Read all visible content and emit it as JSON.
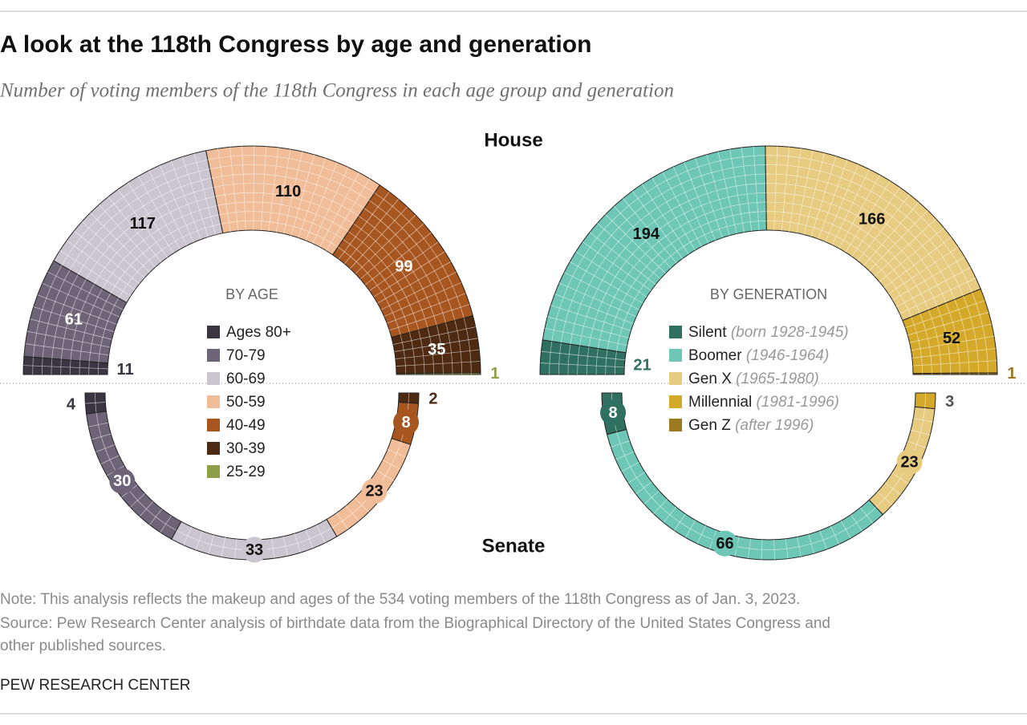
{
  "title": "A look at the 118th Congress by age and generation",
  "subtitle": "Number of voting members of the 118th Congress in each age group and generation",
  "house": "House",
  "senate": "Senate",
  "note": "Note: This analysis reflects the makeup and ages of the 534 voting members of the 118th Congress as of Jan. 3, 2023.",
  "source": [
    "Source: Pew Research Center analysis of birthdate data from the Biographical Directory of the United States Congress and",
    "other published sources."
  ],
  "credit": "PEW RESEARCH CENTER",
  "chart_data": [
    {
      "type": "semicircle",
      "title": "BY AGE",
      "categories": [
        "Ages 80+",
        "70-79",
        "60-69",
        "50-59",
        "40-49",
        "30-39",
        "25-29"
      ],
      "colors": [
        "#3a3540",
        "#6e6478",
        "#cac5cf",
        "#f0bd98",
        "#a8561f",
        "#4f2a12",
        "#8f9f48"
      ],
      "series": [
        {
          "values": [
            11,
            61,
            117,
            110,
            99,
            35,
            1
          ]
        },
        {
          "values": [
            4,
            30,
            33,
            23,
            8,
            2,
            null
          ]
        }
      ]
    },
    {
      "type": "semicircle",
      "title": "BY GENERATION",
      "categories": [
        "Silent",
        "Boomer",
        "Gen X",
        "Millennial",
        "Gen Z"
      ],
      "category_notes": [
        "(born 1928-1945)",
        "(1946-1964)",
        "(1965-1980)",
        "(1981-1996)",
        "(after 1996)"
      ],
      "colors": [
        "#2f7060",
        "#6ec6b6",
        "#e6cb80",
        "#d4a92a",
        "#9c7a22"
      ],
      "series": [
        {
          "values": [
            21,
            194,
            166,
            52,
            1
          ]
        },
        {
          "values": [
            8,
            66,
            23,
            3,
            null
          ]
        }
      ]
    }
  ]
}
